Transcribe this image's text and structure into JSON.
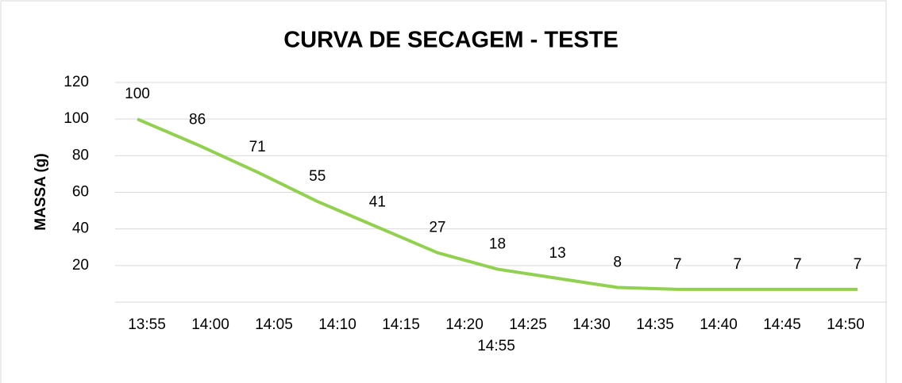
{
  "chart_data": {
    "type": "line",
    "title": "CURVA DE SECAGEM - TESTE",
    "y_label": "MASSA (g)",
    "categories": [
      "13:55",
      "14:00",
      "14:05",
      "14:10",
      "14:15",
      "14:20",
      "14:25",
      "14:30",
      "14:35",
      "14:40",
      "14:45",
      "14:50",
      "14:55"
    ],
    "values": [
      100,
      86,
      71,
      55,
      41,
      27,
      18,
      13,
      8,
      7,
      7,
      7,
      7
    ],
    "color": "#92d050",
    "ylim": [
      0,
      120
    ],
    "yticks": [
      20,
      40,
      60,
      80,
      100,
      120
    ],
    "grid": true
  }
}
